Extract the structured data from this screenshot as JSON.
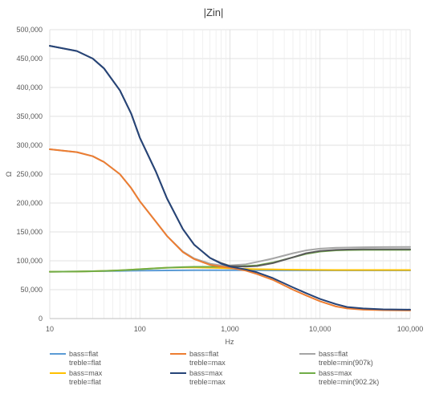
{
  "chart_data": {
    "type": "line",
    "title": "|Zin|",
    "xlabel": "Hz",
    "ylabel": "Ω",
    "x_scale": "log",
    "xlim": [
      10,
      100000
    ],
    "ylim": [
      0,
      500000
    ],
    "x_ticks": [
      10,
      100,
      1000,
      10000,
      100000
    ],
    "x_tick_labels": [
      "10",
      "100",
      "1,000",
      "10,000",
      "100,000"
    ],
    "y_ticks": [
      0,
      50000,
      100000,
      150000,
      200000,
      250000,
      300000,
      350000,
      400000,
      450000,
      500000
    ],
    "y_tick_labels": [
      "0",
      "50,000",
      "100,000",
      "150,000",
      "200,000",
      "250,000",
      "300,000",
      "350,000",
      "400,000",
      "450,000",
      "500,000"
    ],
    "grid": true,
    "legend_position": "bottom",
    "x": [
      10,
      20,
      30,
      40,
      60,
      80,
      100,
      150,
      200,
      300,
      400,
      600,
      800,
      1000,
      1500,
      2000,
      3000,
      5000,
      7000,
      10000,
      15000,
      20000,
      30000,
      50000,
      100000
    ],
    "series": [
      {
        "name": "bass=flat treble=flat",
        "legend_lines": [
          "bass=flat",
          "treble=flat"
        ],
        "color": "#5b9bd5",
        "values": [
          81000,
          81500,
          82000,
          82200,
          82500,
          82800,
          83000,
          83200,
          83400,
          83500,
          83600,
          83700,
          83700,
          83700,
          83600,
          83500,
          83400,
          83300,
          83300,
          83300,
          83300,
          83300,
          83300,
          83300,
          83300
        ]
      },
      {
        "name": "bass=flat treble=max",
        "legend_lines": [
          "bass=flat",
          "treble=max"
        ],
        "color": "#ed7d31",
        "values": [
          293000,
          288000,
          281000,
          271000,
          250000,
          226000,
          203000,
          168000,
          143000,
          115000,
          103000,
          93000,
          90000,
          88000,
          83000,
          77000,
          67000,
          50000,
          40000,
          30000,
          21000,
          17500,
          15500,
          14500,
          14000
        ]
      },
      {
        "name": "bass=flat treble=min(907k)",
        "legend_lines": [
          "bass=flat",
          "treble=min(907k)"
        ],
        "color": "#a5a5a5",
        "values": [
          293000,
          288000,
          281000,
          271000,
          250000,
          226000,
          203000,
          168000,
          143000,
          116000,
          104000,
          95000,
          92000,
          92000,
          94000,
          98000,
          104000,
          113000,
          118000,
          121000,
          122500,
          123000,
          123500,
          123800,
          124000
        ]
      },
      {
        "name": "bass=max treble=flat",
        "legend_lines": [
          "bass=max",
          "treble=flat"
        ],
        "color": "#ffc000",
        "values": [
          81000,
          81500,
          82000,
          82500,
          83500,
          84500,
          85500,
          87000,
          88000,
          88500,
          88500,
          88000,
          87500,
          87000,
          86000,
          85500,
          85000,
          84500,
          84300,
          84200,
          84100,
          84000,
          84000,
          84000,
          84000
        ]
      },
      {
        "name": "bass=max treble=max",
        "legend_lines": [
          "bass=max",
          "treble=max"
        ],
        "color": "#264478",
        "values": [
          472000,
          463000,
          450000,
          433000,
          395000,
          355000,
          313000,
          255000,
          208000,
          155000,
          128000,
          105000,
          95000,
          90000,
          85000,
          80000,
          70000,
          54000,
          44000,
          34000,
          25000,
          20000,
          17500,
          16000,
          15500
        ]
      },
      {
        "name": "bass=max treble=min(902.2k)",
        "legend_lines": [
          "bass=max",
          "treble=min(902.2k)"
        ],
        "color": "#70ad47",
        "values": [
          81000,
          81500,
          82000,
          82500,
          83500,
          84500,
          85500,
          87000,
          88000,
          89000,
          89500,
          89500,
          90000,
          90000,
          91000,
          92000,
          97000,
          106000,
          112000,
          116000,
          118000,
          118500,
          119000,
          119000,
          119000
        ]
      },
      {
        "name": "overlay (bass=max treble=max / min, unlabeled grey)",
        "legend_lines": [],
        "color": "#5a5a5a",
        "values": [
          472000,
          463000,
          450000,
          433000,
          395000,
          355000,
          313000,
          255000,
          208000,
          155000,
          128000,
          105000,
          96000,
          91000,
          90000,
          91000,
          96000,
          106000,
          113000,
          117000,
          119000,
          119500,
          120000,
          120000,
          120000
        ]
      }
    ]
  }
}
